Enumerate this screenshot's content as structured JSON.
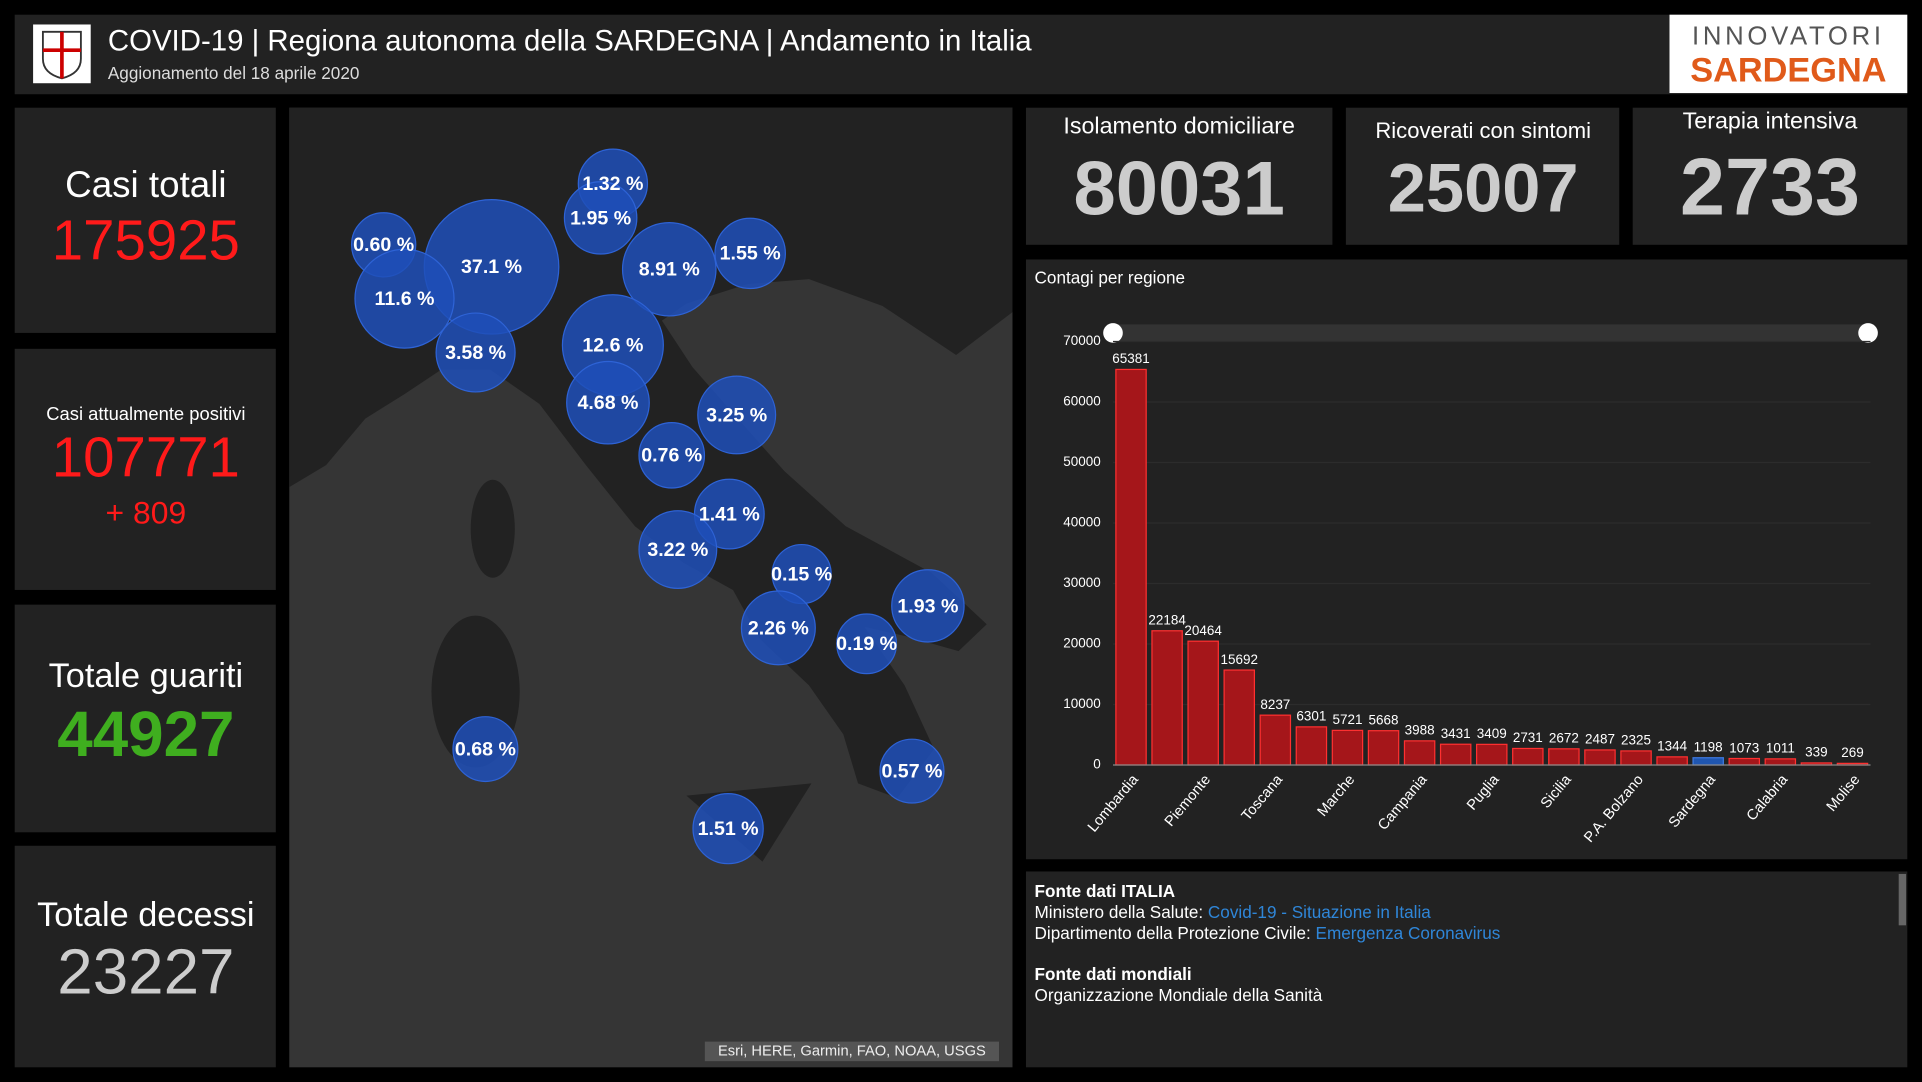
{
  "header": {
    "title": "COVID-19 | Regiona autonoma della SARDEGNA | Andamento in Italia",
    "subtitle": "Aggionamento del 18 aprile 2020",
    "logo_top": "INNOVATORI",
    "logo_bottom": "SARDEGNA"
  },
  "left_kpis": [
    {
      "label": "Casi totali",
      "value": 175925
    },
    {
      "label": "Casi attualmente positivi",
      "value": 107771,
      "change": "+ 809"
    },
    {
      "label": "Totale guariti",
      "value": 44927
    },
    {
      "label": "Totale decessi",
      "value": 23227
    }
  ],
  "top_kpis": [
    {
      "label": "Isolamento domiciliare",
      "value": 80031
    },
    {
      "label": "Ricoverati con sintomi",
      "value": 25007
    },
    {
      "label": "Terapia intensiva",
      "value": 2733
    }
  ],
  "map": {
    "values": [
      1.32,
      1.95,
      0.6,
      37.1,
      11.6,
      8.91,
      1.55,
      3.58,
      12.6,
      4.68,
      3.25,
      0.76,
      1.41,
      3.22,
      0.15,
      1.93,
      2.26,
      0.19,
      0.68,
      0.57,
      1.51
    ],
    "value_labels": [
      "1.32 %",
      "1.95 %",
      "0.60 %",
      "37.1 %",
      "11.6 %",
      "8.91 %",
      "1.55 %",
      "3.58 %",
      "12.6 %",
      "4.68 %",
      "3.25 %",
      "0.76 %",
      "1.41 %",
      "3.22 %",
      "0.15 %",
      "1.93 %",
      "2.26 %",
      "0.19 %",
      "0.68 %",
      "0.57 %",
      "1.51 %"
    ],
    "attribution": "Esri, HERE, Garmin, FAO, NOAA, USGS"
  },
  "chart_data": {
    "type": "bar",
    "title": "Contagi per regione",
    "categories": [
      "Lombardia",
      null,
      "Piemonte",
      null,
      "Toscana",
      null,
      "Marche",
      null,
      "Campania",
      null,
      "Puglia",
      null,
      "Sicilia",
      null,
      "P.A. Bolzano",
      null,
      "Sardegna",
      null,
      "Calabria",
      null,
      "Molise"
    ],
    "values": [
      65381,
      22184,
      20464,
      15692,
      8237,
      6301,
      5721,
      5668,
      3988,
      3431,
      3409,
      2731,
      2672,
      2487,
      2325,
      1344,
      1198,
      1073,
      1011,
      339,
      269
    ],
    "colors": [
      "#a5161a",
      "#a5161a",
      "#a5161a",
      "#a5161a",
      "#a5161a",
      "#a5161a",
      "#a5161a",
      "#a5161a",
      "#a5161a",
      "#a5161a",
      "#a5161a",
      "#a5161a",
      "#a5161a",
      "#a5161a",
      "#a5161a",
      "#a5161a",
      "#1f56b0",
      "#a5161a",
      "#a5161a",
      "#a5161a",
      "#a5161a"
    ],
    "ylim": [
      0,
      70000
    ],
    "yticks": [
      0,
      10000,
      20000,
      30000,
      40000,
      50000,
      60000,
      70000
    ]
  },
  "sources": {
    "italy_title": "Fonte dati ITALIA",
    "ministry": "Ministero della Salute:",
    "ministry_link": "Covid-19 - Situazione in Italia",
    "civil": "Dipartimento della Protezione Civile:",
    "civil_link": "Emergenza Coronavirus",
    "world_title": "Fonte dati mondiali",
    "world": "Organizzazione Mondiale della Sanità"
  }
}
